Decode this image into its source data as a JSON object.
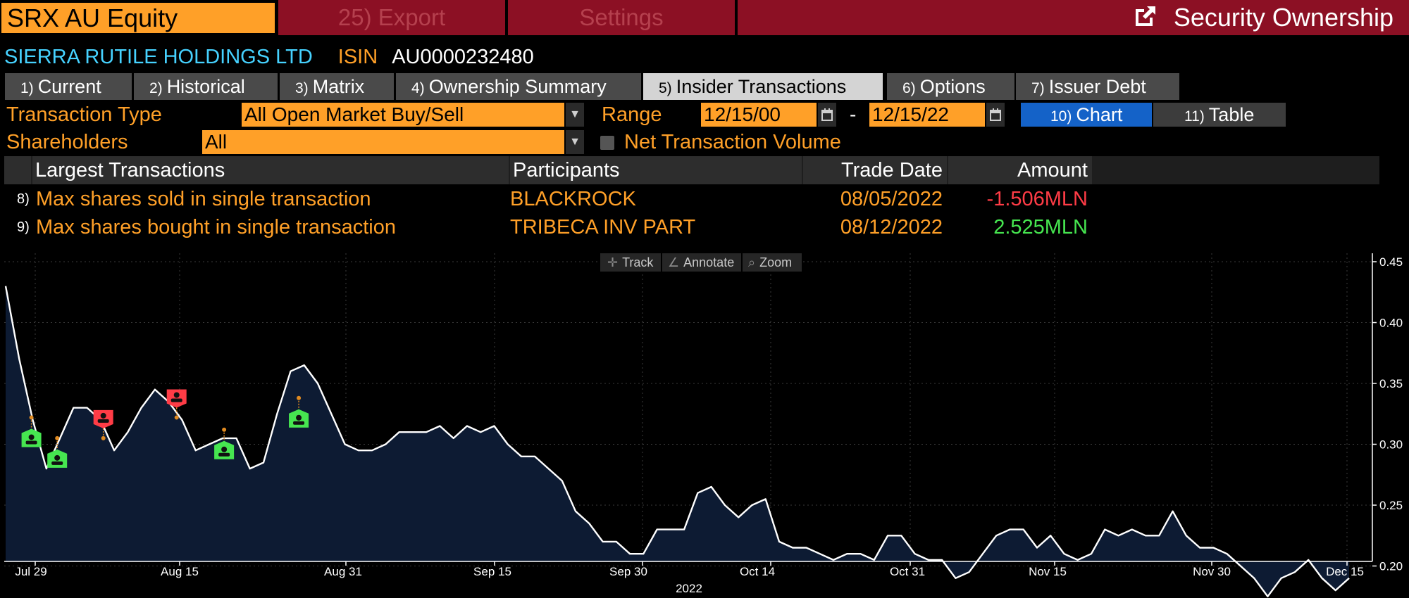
{
  "topbar": {
    "ticker": "SRX AU Equity",
    "export_label": "25) Export",
    "settings_label": "Settings",
    "title": "Security Ownership"
  },
  "security": {
    "name": "SIERRA RUTILE HOLDINGS LTD",
    "isin_label": "ISIN",
    "isin": "AU0000232480"
  },
  "tabs": [
    {
      "num": "1)",
      "label": "Current"
    },
    {
      "num": "2)",
      "label": "Historical"
    },
    {
      "num": "3)",
      "label": "Matrix"
    },
    {
      "num": "4)",
      "label": "Ownership Summary"
    },
    {
      "num": "5)",
      "label": "Insider Transactions"
    },
    {
      "num": "6)",
      "label": "Options"
    },
    {
      "num": "7)",
      "label": "Issuer Debt"
    }
  ],
  "filters": {
    "transaction_type_label": "Transaction Type",
    "transaction_type_value": "All Open Market Buy/Sell",
    "range_label": "Range",
    "range_start": "12/15/00",
    "range_sep": "-",
    "range_end": "12/15/22",
    "chart_num": "10)",
    "chart_label": "Chart",
    "table_num": "11)",
    "table_label": "Table",
    "shareholders_label": "Shareholders",
    "shareholders_value": "All",
    "net_volume_label": "Net Transaction Volume"
  },
  "largest": {
    "headers": {
      "desc": "Largest Transactions",
      "participants": "Participants",
      "date": "Trade Date",
      "amount": "Amount"
    },
    "rows": [
      {
        "num": "8)",
        "desc": "Max shares sold in single transaction",
        "participant": "BLACKROCK",
        "date": "08/05/2022",
        "amount": "-1.506MLN"
      },
      {
        "num": "9)",
        "desc": "Max shares bought in single transaction",
        "participant": "TRIBECA INV PART",
        "date": "08/12/2022",
        "amount": "2.525MLN"
      }
    ]
  },
  "toolbar": {
    "track": "Track",
    "annotate": "Annotate",
    "zoom": "Zoom"
  },
  "colors": {
    "orange": "#ffa028",
    "red_bar": "#8c1024",
    "cyan": "#46d2ff",
    "sell": "#ff3c46",
    "buy": "#46e650",
    "area": "#0d1b33",
    "blue_btn": "#1462c8"
  },
  "chart_data": {
    "type": "area",
    "year_label": "2022",
    "x_ticks": [
      "Jul 29",
      "Aug 15",
      "Aug 31",
      "Sep 15",
      "Sep 30",
      "Oct 14",
      "Oct 31",
      "Nov 15",
      "Nov 30",
      "Dec 15"
    ],
    "y_ticks": [
      "0.45",
      "0.40",
      "0.35",
      "0.30",
      "0.25",
      "0.20"
    ],
    "ylim": [
      0.15,
      0.45
    ],
    "y_axis_position": "right",
    "grid": true,
    "values": [
      0.43,
      0.37,
      0.32,
      0.28,
      0.305,
      0.33,
      0.33,
      0.32,
      0.295,
      0.31,
      0.33,
      0.345,
      0.335,
      0.32,
      0.295,
      0.3,
      0.305,
      0.305,
      0.28,
      0.285,
      0.325,
      0.36,
      0.365,
      0.35,
      0.325,
      0.3,
      0.295,
      0.295,
      0.3,
      0.31,
      0.31,
      0.31,
      0.315,
      0.305,
      0.315,
      0.31,
      0.315,
      0.3,
      0.29,
      0.29,
      0.28,
      0.27,
      0.245,
      0.235,
      0.22,
      0.22,
      0.21,
      0.21,
      0.23,
      0.23,
      0.23,
      0.26,
      0.265,
      0.25,
      0.24,
      0.25,
      0.255,
      0.22,
      0.215,
      0.215,
      0.21,
      0.205,
      0.21,
      0.21,
      0.205,
      0.225,
      0.225,
      0.21,
      0.205,
      0.205,
      0.19,
      0.195,
      0.21,
      0.225,
      0.23,
      0.23,
      0.215,
      0.225,
      0.21,
      0.205,
      0.21,
      0.23,
      0.225,
      0.23,
      0.225,
      0.225,
      0.245,
      0.225,
      0.215,
      0.215,
      0.21,
      0.2,
      0.19,
      0.175,
      0.19,
      0.195,
      0.205,
      0.19,
      0.18,
      0.19
    ],
    "markers": [
      {
        "type": "buy",
        "index": 1.9,
        "value": 0.322
      },
      {
        "type": "buy",
        "index": 3.8,
        "value": 0.305
      },
      {
        "type": "sell",
        "index": 7.2,
        "value": 0.305
      },
      {
        "type": "sell",
        "index": 12.6,
        "value": 0.322
      },
      {
        "type": "buy",
        "index": 16.1,
        "value": 0.312
      },
      {
        "type": "buy",
        "index": 21.6,
        "value": 0.338
      }
    ]
  }
}
